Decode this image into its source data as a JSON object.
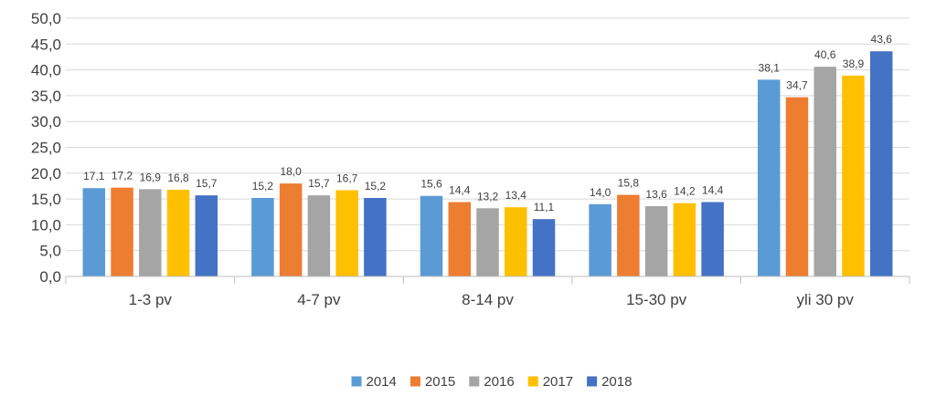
{
  "chart_data": {
    "type": "bar",
    "categories": [
      "1-3 pv",
      "4-7 pv",
      "8-14 pv",
      "15-30 pv",
      "yli 30 pv"
    ],
    "series": [
      {
        "name": "2014",
        "color": "#5B9BD5",
        "values": [
          17.1,
          15.2,
          15.6,
          14.0,
          38.1
        ],
        "labels": [
          "17,1",
          "15,2",
          "15,6",
          "14,0",
          "38,1"
        ]
      },
      {
        "name": "2015",
        "color": "#ED7D31",
        "values": [
          17.2,
          18.0,
          14.4,
          15.8,
          34.7
        ],
        "labels": [
          "17,2",
          "18,0",
          "14,4",
          "15,8",
          "34,7"
        ]
      },
      {
        "name": "2016",
        "color": "#A5A5A5",
        "values": [
          16.9,
          15.7,
          13.2,
          13.6,
          40.6
        ],
        "labels": [
          "16,9",
          "15,7",
          "13,2",
          "13,6",
          "40,6"
        ]
      },
      {
        "name": "2017",
        "color": "#FFC000",
        "values": [
          16.8,
          16.7,
          13.4,
          14.2,
          38.9
        ],
        "labels": [
          "16,8",
          "16,7",
          "13,4",
          "14,2",
          "38,9"
        ]
      },
      {
        "name": "2018",
        "color": "#4472C4",
        "values": [
          15.7,
          15.2,
          11.1,
          14.4,
          43.6
        ],
        "labels": [
          "15,7",
          "15,2",
          "11,1",
          "14,4",
          "43,6"
        ]
      }
    ],
    "ylim": [
      0,
      50
    ],
    "yticks": [
      0,
      5,
      10,
      15,
      20,
      25,
      30,
      35,
      40,
      45,
      50
    ],
    "ytick_labels": [
      "0,0",
      "5,0",
      "10,0",
      "15,0",
      "20,0",
      "25,0",
      "30,0",
      "35,0",
      "40,0",
      "45,0",
      "50,0"
    ],
    "grid": true,
    "legend_position": "bottom",
    "title": "",
    "xlabel": "",
    "ylabel": ""
  }
}
